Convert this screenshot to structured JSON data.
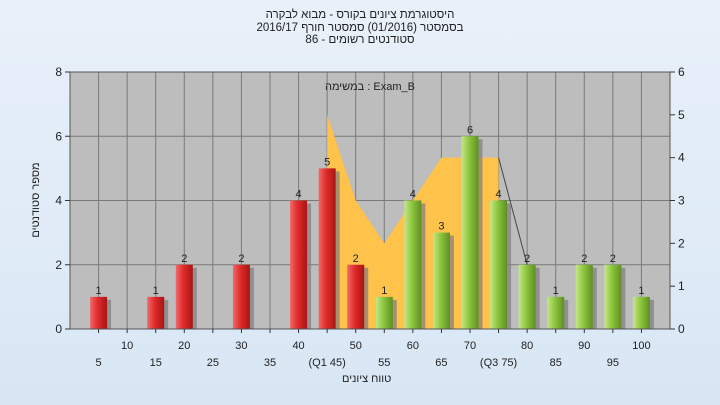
{
  "chart_data": {
    "type": "bar",
    "title_lines": [
      "היסטוגרמת ציונים בקורס - מבוא לבקרה",
      "בסמסטר  (01/2016)  סמסטר חורף 2016/17",
      "סטודנטים רשומים - 86"
    ],
    "legend_label": "במשימה : Exam_B",
    "ylabel": "מספר סטודנטים",
    "xlabel": "טווח ציונים",
    "ylim_left": [
      0,
      8
    ],
    "yticks_left": [
      0,
      2,
      4,
      6,
      8
    ],
    "ylim_right": [
      0,
      6
    ],
    "yticks_right": [
      0,
      1,
      2,
      3,
      4,
      5,
      6
    ],
    "x_labels": [
      {
        "x": 5,
        "text": "5",
        "row": 2
      },
      {
        "x": 10,
        "text": "10",
        "row": 1
      },
      {
        "x": 15,
        "text": "15",
        "row": 2
      },
      {
        "x": 20,
        "text": "20",
        "row": 1
      },
      {
        "x": 25,
        "text": "25",
        "row": 2
      },
      {
        "x": 30,
        "text": "30",
        "row": 1
      },
      {
        "x": 35,
        "text": "35",
        "row": 2
      },
      {
        "x": 40,
        "text": "40",
        "row": 1
      },
      {
        "x": 45,
        "text": "(Q1 45)",
        "row": 2
      },
      {
        "x": 50,
        "text": "50",
        "row": 1
      },
      {
        "x": 55,
        "text": "55",
        "row": 2
      },
      {
        "x": 60,
        "text": "60",
        "row": 1
      },
      {
        "x": 65,
        "text": "65",
        "row": 2
      },
      {
        "x": 70,
        "text": "70",
        "row": 1
      },
      {
        "x": 75,
        "text": "(Q3 75)",
        "row": 2
      },
      {
        "x": 80,
        "text": "80",
        "row": 1
      },
      {
        "x": 85,
        "text": "85",
        "row": 2
      },
      {
        "x": 90,
        "text": "90",
        "row": 1
      },
      {
        "x": 95,
        "text": "95",
        "row": 2
      },
      {
        "x": 100,
        "text": "100",
        "row": 1
      }
    ],
    "bars": [
      {
        "x": 5,
        "value": 1,
        "color": "red"
      },
      {
        "x": 15,
        "value": 1,
        "color": "red"
      },
      {
        "x": 20,
        "value": 2,
        "color": "red"
      },
      {
        "x": 30,
        "value": 2,
        "color": "red"
      },
      {
        "x": 40,
        "value": 4,
        "color": "red"
      },
      {
        "x": 45,
        "value": 5,
        "color": "red"
      },
      {
        "x": 50,
        "value": 2,
        "color": "red"
      },
      {
        "x": 55,
        "value": 1,
        "color": "green"
      },
      {
        "x": 60,
        "value": 4,
        "color": "green"
      },
      {
        "x": 65,
        "value": 3,
        "color": "green"
      },
      {
        "x": 70,
        "value": 6,
        "color": "green"
      },
      {
        "x": 75,
        "value": 4,
        "color": "green"
      },
      {
        "x": 80,
        "value": 2,
        "color": "green"
      },
      {
        "x": 85,
        "value": 1,
        "color": "green"
      },
      {
        "x": 90,
        "value": 2,
        "color": "green"
      },
      {
        "x": 95,
        "value": 2,
        "color": "green"
      },
      {
        "x": 100,
        "value": 1,
        "color": "green"
      }
    ],
    "area_right_axis": [
      {
        "x": 45,
        "y": 5
      },
      {
        "x": 50,
        "y": 3
      },
      {
        "x": 55,
        "y": 2
      },
      {
        "x": 65,
        "y": 4
      },
      {
        "x": 75,
        "y": 4
      }
    ],
    "trend_line_right_axis": [
      {
        "x": 75,
        "y": 4
      },
      {
        "x": 80,
        "y": 1.5
      }
    ],
    "colors": {
      "plot_background": "#bdbdbd",
      "area": "#ffc24a",
      "red_bar": "#e02a2a",
      "green_bar": "#8cc63e",
      "grid": "#7a7a7a"
    }
  }
}
